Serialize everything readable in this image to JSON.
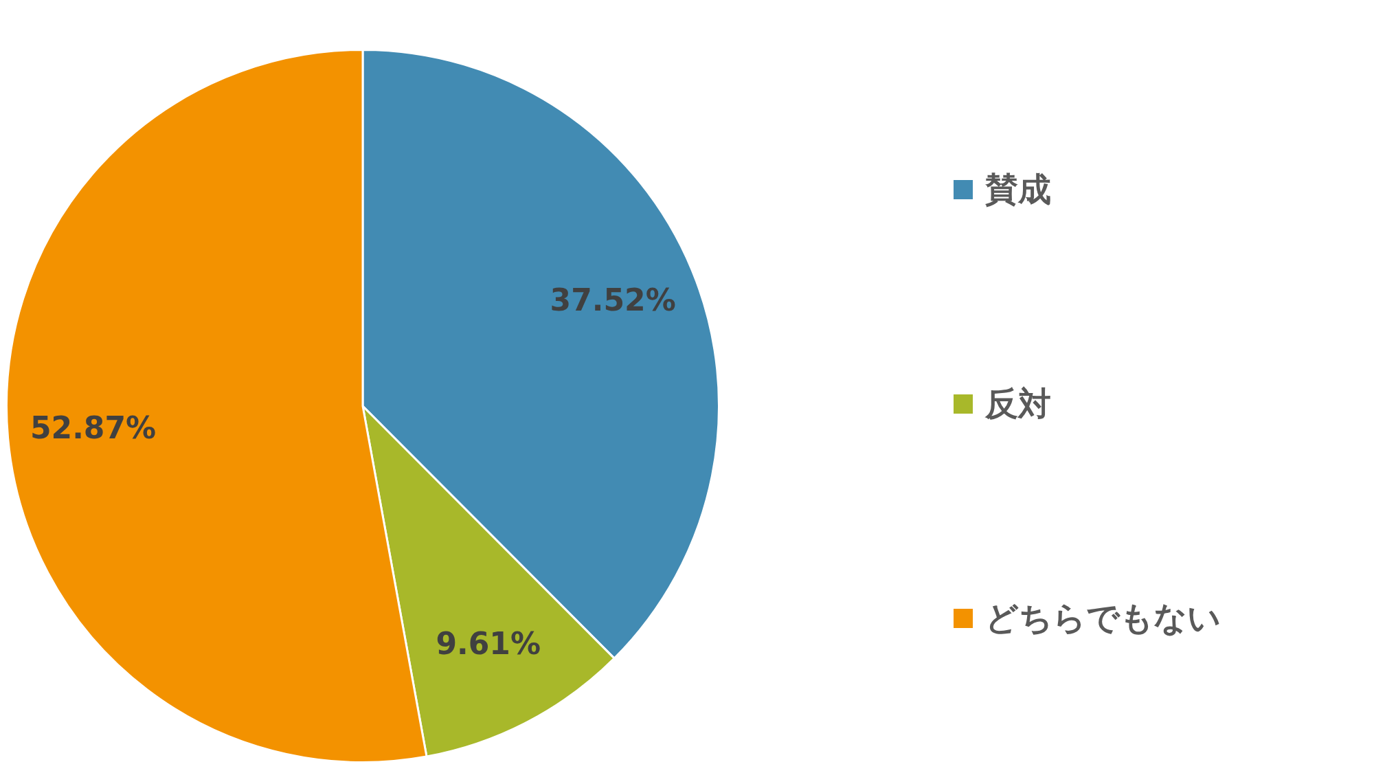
{
  "chart_data": {
    "type": "pie",
    "categories": [
      "賛成",
      "反対",
      "どちらでもない"
    ],
    "values": [
      37.52,
      9.61,
      52.87
    ],
    "colors": [
      "#428bb3",
      "#a8b82a",
      "#f39200"
    ],
    "value_labels": [
      "37.52%",
      "9.61%",
      "52.87%"
    ],
    "legend": "right"
  }
}
